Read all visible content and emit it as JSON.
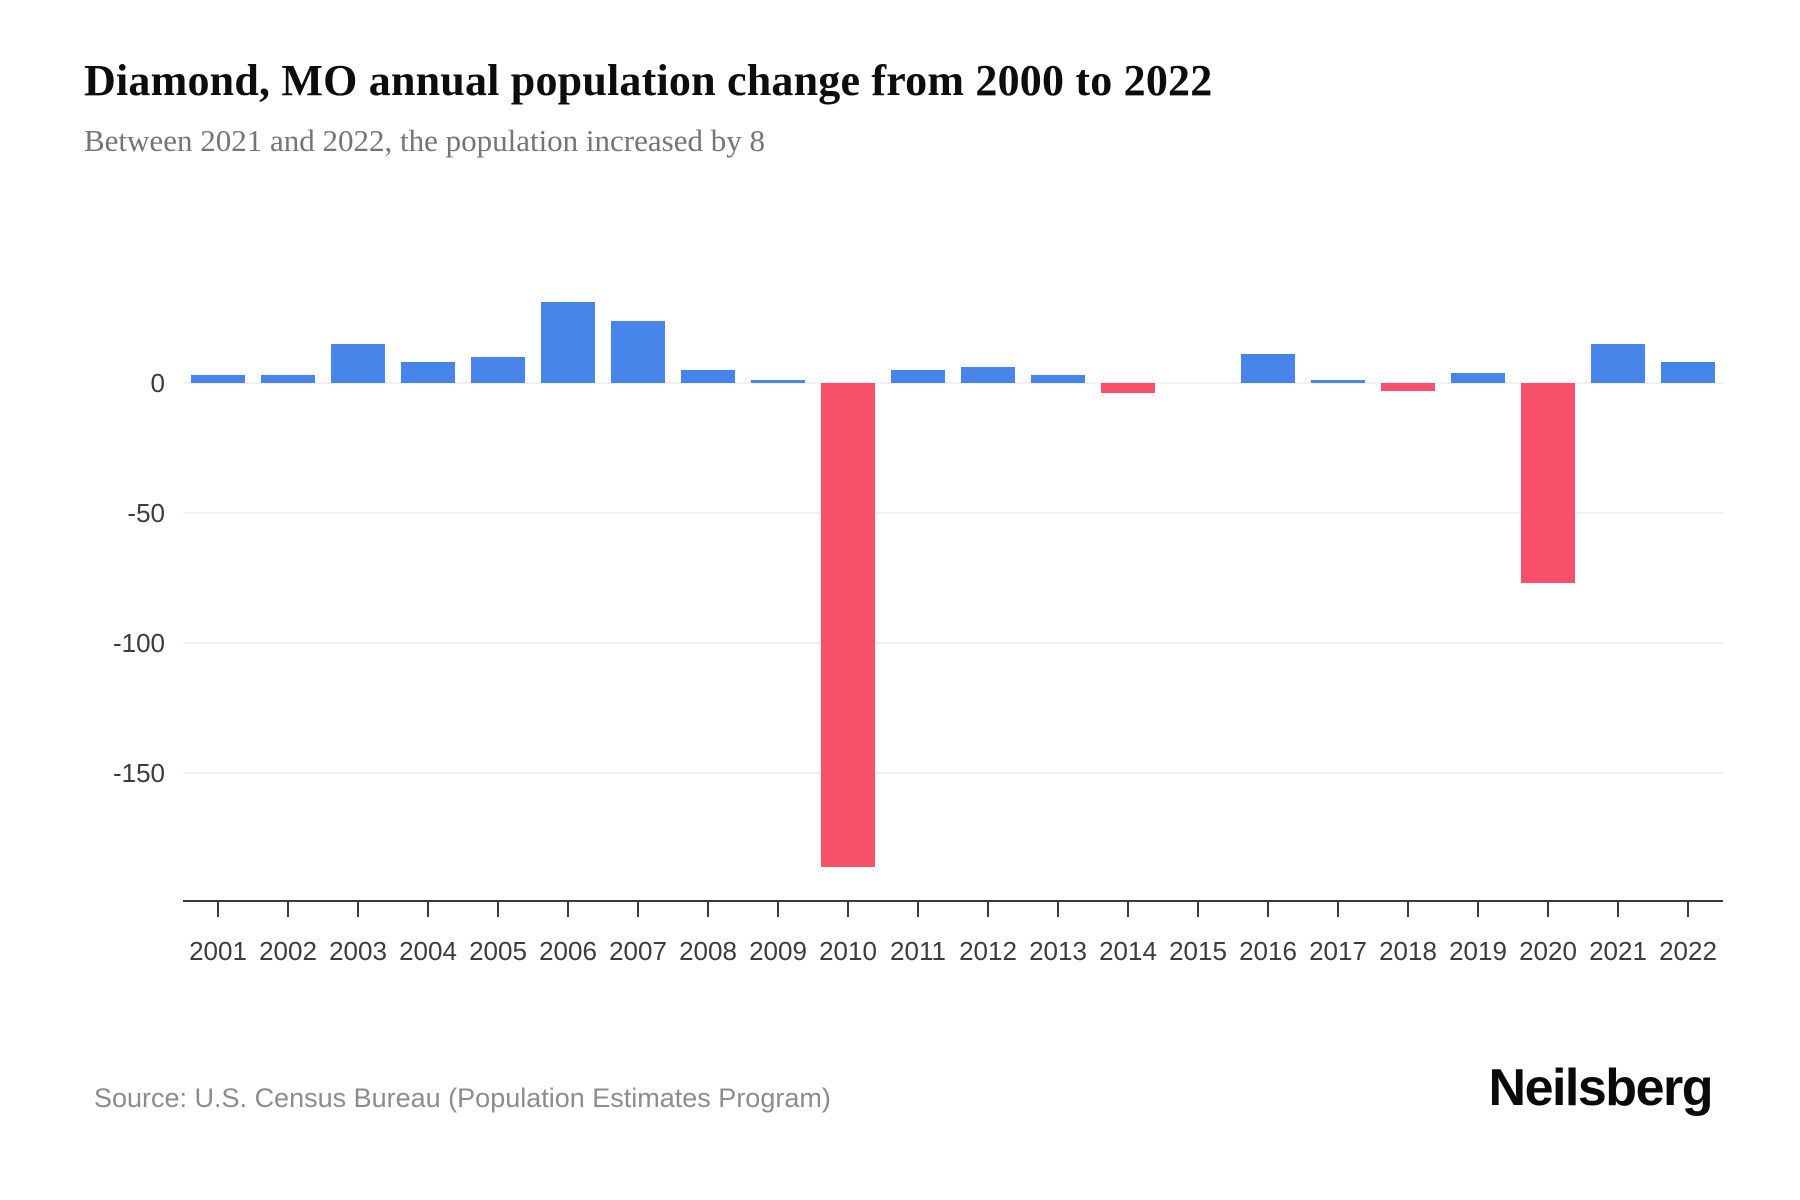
{
  "title": "Diamond, MO annual population change from 2000 to 2022",
  "subtitle": "Between 2021 and 2022, the population increased by 8",
  "source": "Source: U.S. Census Bureau (Population Estimates Program)",
  "brand": "Neilsberg",
  "chart_data": {
    "type": "bar",
    "title": "Diamond, MO annual population change from 2000 to 2022",
    "categories": [
      "2001",
      "2002",
      "2003",
      "2004",
      "2005",
      "2006",
      "2007",
      "2008",
      "2009",
      "2010",
      "2011",
      "2012",
      "2013",
      "2014",
      "2015",
      "2016",
      "2017",
      "2018",
      "2019",
      "2020",
      "2021",
      "2022"
    ],
    "values": [
      3,
      3,
      15,
      8,
      10,
      31,
      24,
      5,
      1,
      -186,
      5,
      6,
      3,
      -4,
      0,
      11,
      1,
      -3,
      4,
      -77,
      15,
      8
    ],
    "xlabel": "",
    "ylabel": "",
    "yticks": [
      0,
      -50,
      -100,
      -150
    ],
    "yticklabels": [
      "0",
      "-50",
      "-100",
      "-150"
    ],
    "ylim": [
      -199,
      35
    ],
    "grid": true,
    "legend": false,
    "colors": {
      "positive_bar": "#4785EB",
      "negative_bar": "#F95069",
      "gridline": "#f2f2f2",
      "axis": "#3a3a3a",
      "tick_label": "#3c3c3c"
    }
  }
}
